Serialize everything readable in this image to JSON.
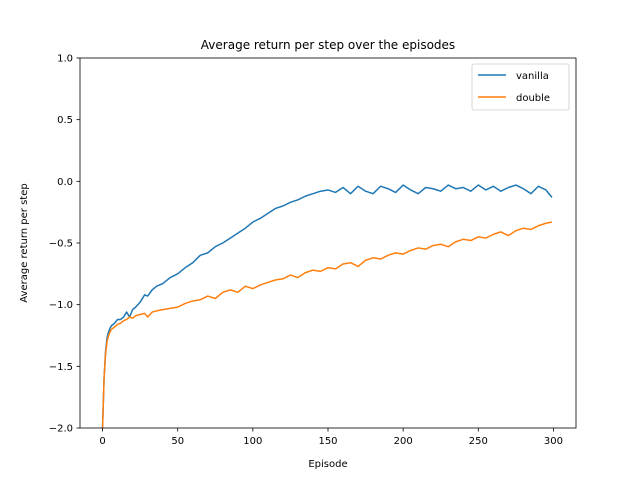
{
  "chart_data": {
    "type": "line",
    "title": "Average return per step over the episodes",
    "xlabel": "Episode",
    "ylabel": "Average return per step",
    "xlim": [
      -15,
      315
    ],
    "ylim": [
      -2.0,
      1.0
    ],
    "xticks": [
      0,
      50,
      100,
      150,
      200,
      250,
      300
    ],
    "xtick_labels": [
      "0",
      "50",
      "100",
      "150",
      "200",
      "250",
      "300"
    ],
    "yticks": [
      -2.0,
      -1.5,
      -1.0,
      -0.5,
      0.0,
      0.5,
      1.0
    ],
    "ytick_labels": [
      "−2.0",
      "−1.5",
      "−1.0",
      "−0.5",
      "0.0",
      "0.5",
      "1.0"
    ],
    "grid": false,
    "legend_position": "top-right",
    "series": [
      {
        "name": "vanilla",
        "color": "#1f77b4",
        "x": [
          0,
          1,
          2,
          3,
          4,
          5,
          6,
          8,
          10,
          12,
          14,
          16,
          18,
          20,
          22,
          25,
          28,
          30,
          33,
          36,
          40,
          45,
          50,
          55,
          60,
          65,
          70,
          75,
          80,
          85,
          90,
          95,
          100,
          105,
          110,
          115,
          120,
          125,
          130,
          135,
          140,
          145,
          150,
          155,
          160,
          165,
          170,
          175,
          180,
          185,
          190,
          195,
          200,
          205,
          210,
          215,
          220,
          225,
          230,
          235,
          240,
          245,
          250,
          255,
          260,
          265,
          270,
          275,
          280,
          285,
          290,
          295,
          299
        ],
        "y": [
          -2.0,
          -1.6,
          -1.38,
          -1.27,
          -1.22,
          -1.19,
          -1.17,
          -1.15,
          -1.12,
          -1.12,
          -1.1,
          -1.06,
          -1.1,
          -1.04,
          -1.02,
          -0.98,
          -0.92,
          -0.93,
          -0.88,
          -0.85,
          -0.83,
          -0.78,
          -0.75,
          -0.7,
          -0.66,
          -0.6,
          -0.58,
          -0.53,
          -0.5,
          -0.46,
          -0.42,
          -0.38,
          -0.33,
          -0.3,
          -0.26,
          -0.22,
          -0.2,
          -0.17,
          -0.15,
          -0.12,
          -0.1,
          -0.08,
          -0.07,
          -0.09,
          -0.05,
          -0.1,
          -0.04,
          -0.08,
          -0.1,
          -0.04,
          -0.06,
          -0.09,
          -0.03,
          -0.07,
          -0.1,
          -0.05,
          -0.06,
          -0.08,
          -0.03,
          -0.06,
          -0.05,
          -0.08,
          -0.03,
          -0.07,
          -0.04,
          -0.08,
          -0.05,
          -0.03,
          -0.06,
          -0.1,
          -0.04,
          -0.07,
          -0.13
        ]
      },
      {
        "name": "double",
        "color": "#ff7f0e",
        "x": [
          0,
          1,
          2,
          3,
          4,
          5,
          6,
          8,
          10,
          12,
          14,
          16,
          18,
          20,
          22,
          25,
          28,
          30,
          33,
          36,
          40,
          45,
          50,
          55,
          60,
          65,
          70,
          75,
          80,
          85,
          90,
          95,
          100,
          105,
          110,
          115,
          120,
          125,
          130,
          135,
          140,
          145,
          150,
          155,
          160,
          165,
          170,
          175,
          180,
          185,
          190,
          195,
          200,
          205,
          210,
          215,
          220,
          225,
          230,
          235,
          240,
          245,
          250,
          255,
          260,
          265,
          270,
          275,
          280,
          285,
          290,
          295,
          299
        ],
        "y": [
          -2.0,
          -1.6,
          -1.4,
          -1.3,
          -1.25,
          -1.22,
          -1.2,
          -1.18,
          -1.16,
          -1.15,
          -1.13,
          -1.12,
          -1.1,
          -1.11,
          -1.09,
          -1.08,
          -1.07,
          -1.1,
          -1.06,
          -1.05,
          -1.04,
          -1.03,
          -1.02,
          -0.99,
          -0.97,
          -0.96,
          -0.93,
          -0.95,
          -0.9,
          -0.88,
          -0.9,
          -0.85,
          -0.87,
          -0.84,
          -0.82,
          -0.8,
          -0.79,
          -0.76,
          -0.78,
          -0.74,
          -0.72,
          -0.73,
          -0.7,
          -0.71,
          -0.67,
          -0.66,
          -0.69,
          -0.64,
          -0.62,
          -0.63,
          -0.6,
          -0.58,
          -0.59,
          -0.56,
          -0.54,
          -0.55,
          -0.52,
          -0.51,
          -0.53,
          -0.49,
          -0.47,
          -0.48,
          -0.45,
          -0.46,
          -0.43,
          -0.41,
          -0.44,
          -0.4,
          -0.38,
          -0.39,
          -0.36,
          -0.34,
          -0.33
        ]
      }
    ]
  }
}
